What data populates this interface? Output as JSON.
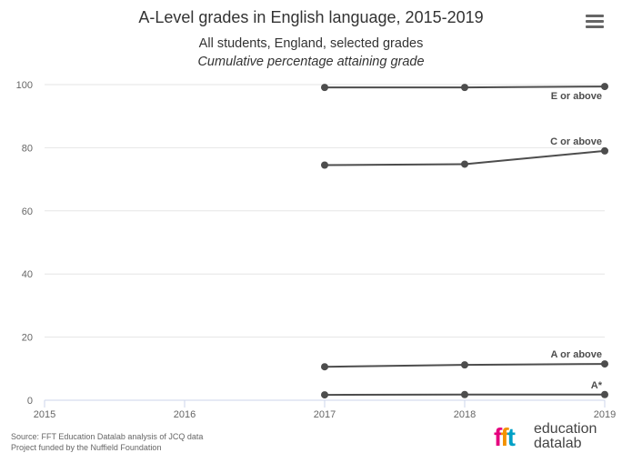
{
  "header": {
    "title": "A-Level grades in English language, 2015-2019",
    "subtitle": "All students, England, selected grades",
    "subtitle2": "Cumulative percentage attaining grade"
  },
  "footer": {
    "source": "Source: FFT Education Datalab analysis of JCQ data",
    "funding": "Project funded by the Nuffield Foundation",
    "brand_mark": [
      "f",
      "f",
      "t"
    ],
    "brand_line1": "education",
    "brand_line2": "datalab"
  },
  "colors": {
    "series": "#4d4d4d",
    "grid": "#e6e6e6",
    "axis": "#ccd6eb",
    "text": "#333333",
    "brand_magenta": "#e5007e",
    "brand_orange": "#f39200",
    "brand_cyan": "#00a0c6"
  },
  "icons": {
    "menu": "hamburger-menu-icon"
  },
  "chart_data": {
    "type": "line",
    "title": "A-Level grades in English language, 2015-2019",
    "subtitle": "All students, England, selected grades — Cumulative percentage attaining grade",
    "x": [
      2015,
      2016,
      2017,
      2018,
      2019
    ],
    "xlabel": "",
    "ylabel": "",
    "ylim": [
      0,
      100
    ],
    "yticks": [
      0,
      20,
      40,
      60,
      80,
      100
    ],
    "grid": true,
    "series": [
      {
        "name": "E or above",
        "values": [
          null,
          null,
          99.1,
          99.1,
          99.4
        ]
      },
      {
        "name": "C or above",
        "values": [
          null,
          null,
          74.5,
          74.8,
          79.0
        ]
      },
      {
        "name": "A or above",
        "values": [
          null,
          null,
          10.6,
          11.2,
          11.5
        ]
      },
      {
        "name": "A*",
        "values": [
          null,
          null,
          1.7,
          1.8,
          1.8
        ]
      }
    ]
  }
}
